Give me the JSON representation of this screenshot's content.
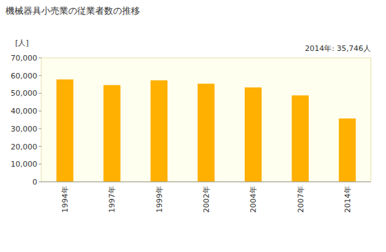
{
  "chart_data": {
    "type": "bar",
    "title": "機械器具小売業の従業者数の推移",
    "y_label": "[人]",
    "annotations": [
      "2014年: 35,746人"
    ],
    "categories": [
      "1994年",
      "1997年",
      "1999年",
      "2002年",
      "2004年",
      "2007年",
      "2014年"
    ],
    "values": [
      57800,
      54600,
      57300,
      55400,
      53300,
      48800,
      35746
    ],
    "color": "#ffb000",
    "ylim": [
      0,
      70000
    ],
    "yticks": [
      0,
      {
        "value": 10000,
        "label": "10,000"
      },
      {
        "value": 20000,
        "label": "20,000"
      },
      {
        "value": 30000,
        "label": "30,000"
      },
      {
        "value": 40000,
        "label": "40,000"
      },
      {
        "value": 50000,
        "label": "50,000"
      },
      {
        "value": 60000,
        "label": "60,000"
      },
      {
        "value": 70000,
        "label": "70,000"
      }
    ],
    "grid": false
  }
}
